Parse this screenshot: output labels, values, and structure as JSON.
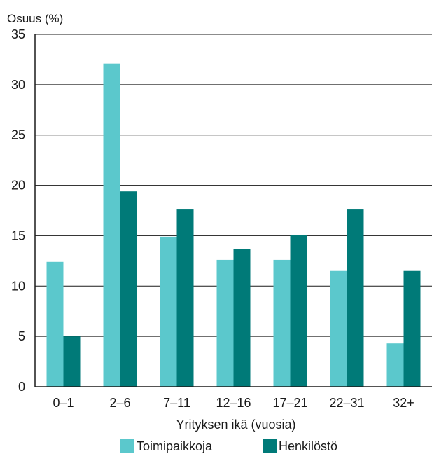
{
  "chart_data": {
    "type": "bar",
    "ylabel": "Osuus (%)",
    "xlabel": "Yrityksen ikä (vuosia)",
    "categories": [
      "0–1",
      "2–6",
      "7–11",
      "12–16",
      "17–21",
      "22–31",
      "32+"
    ],
    "ylim": [
      0,
      35
    ],
    "yticks": [
      0,
      5,
      10,
      15,
      20,
      25,
      30,
      35
    ],
    "grid": true,
    "legend_position": "bottom",
    "series": [
      {
        "name": "Toimipaikkoja",
        "color": "#5bc8cc",
        "values": [
          12.4,
          32.1,
          14.9,
          12.6,
          12.6,
          11.5,
          4.3
        ]
      },
      {
        "name": "Henkilöstö",
        "color": "#007a78",
        "values": [
          5.0,
          19.4,
          17.6,
          13.7,
          15.1,
          17.6,
          11.5
        ]
      }
    ]
  }
}
